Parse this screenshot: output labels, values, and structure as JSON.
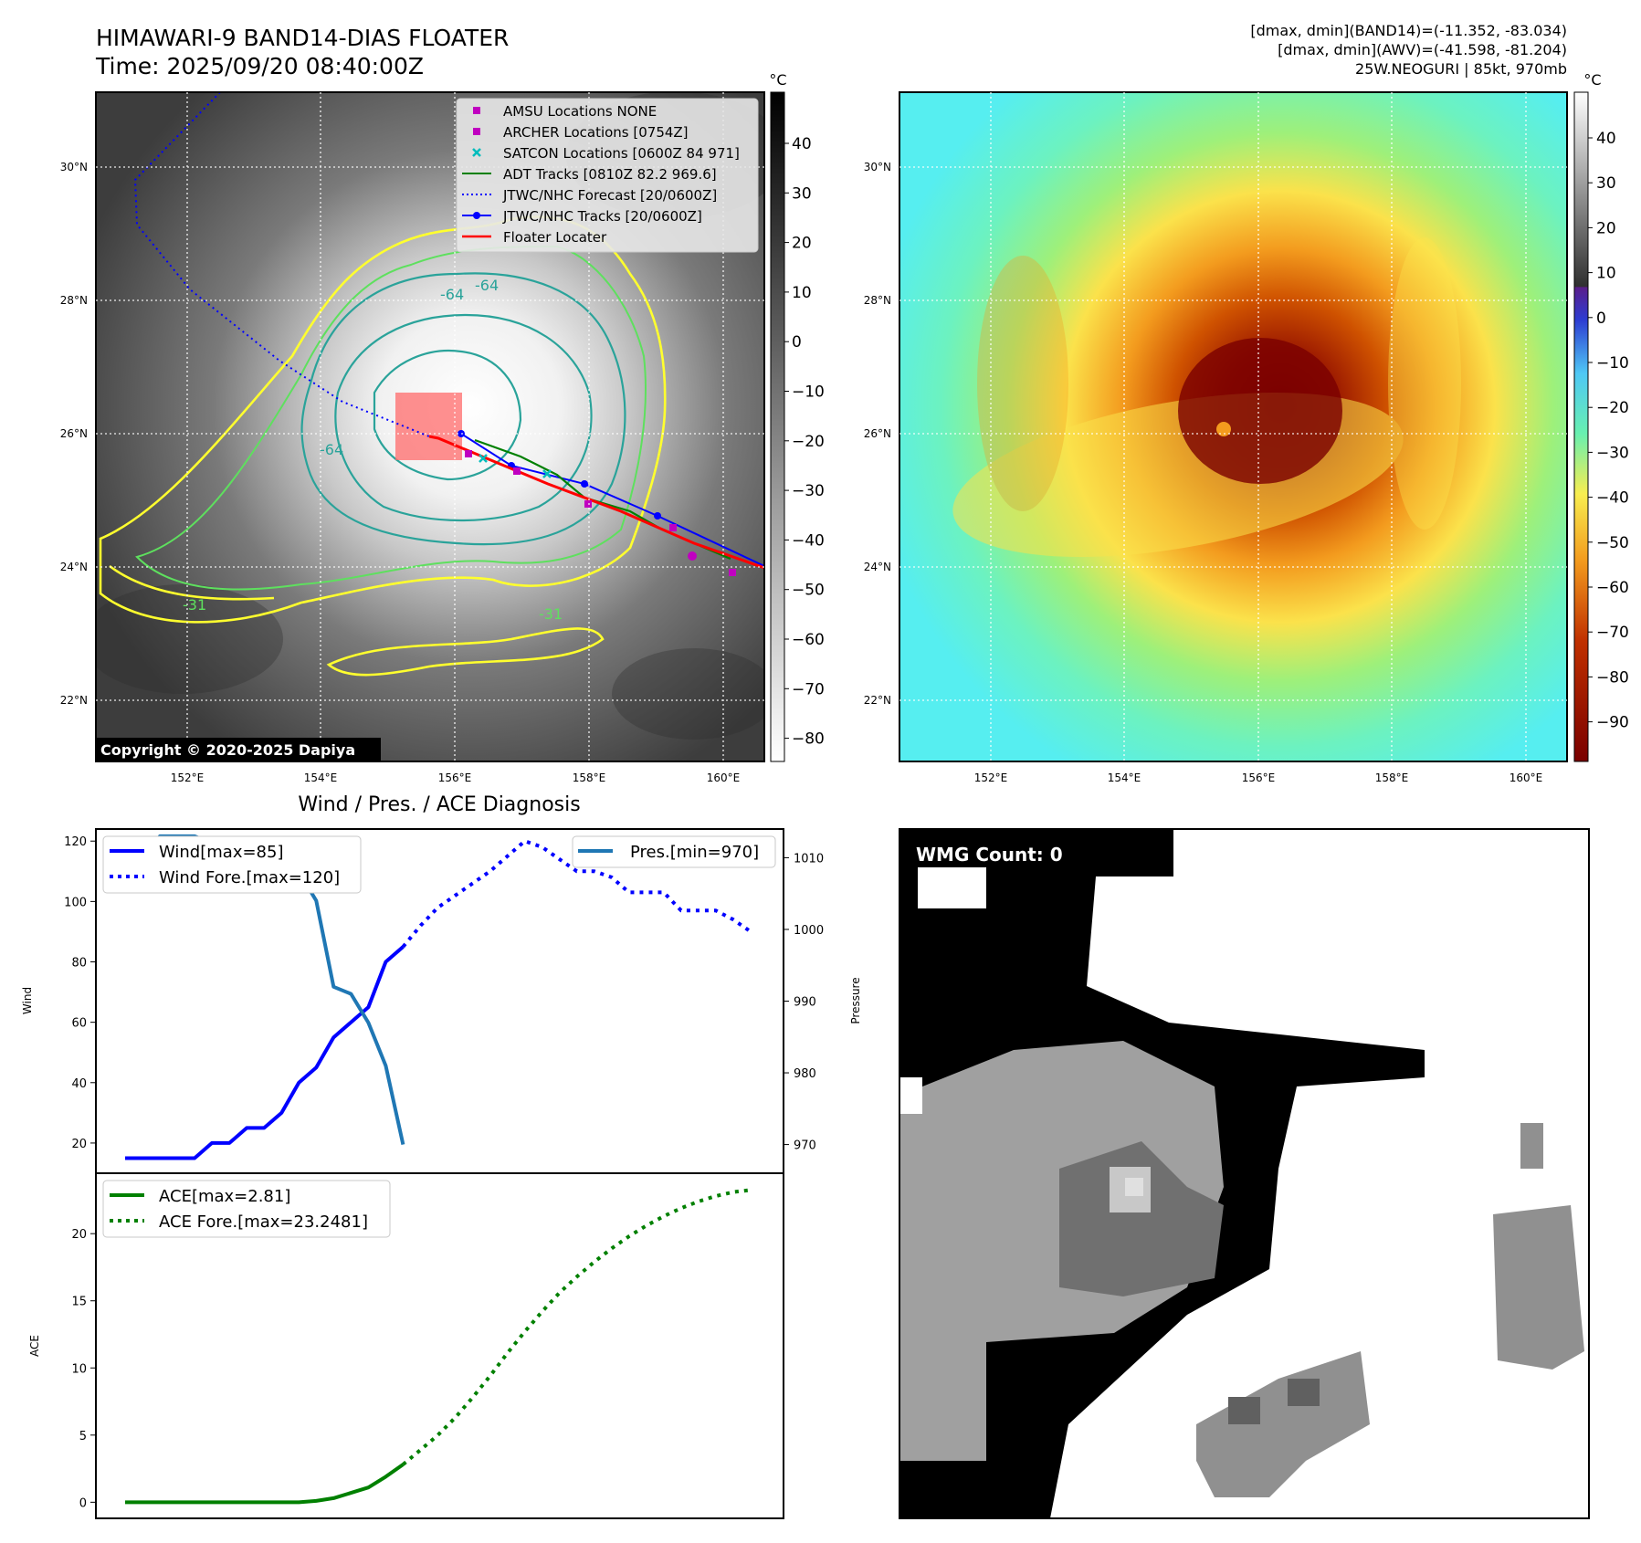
{
  "header": {
    "title_line1": "HIMAWARI-9 BAND14-DIAS FLOATER",
    "title_line2": "Time: 2025/09/20 08:40:00Z",
    "info_line1": "[dmax, dmin](BAND14)=(-11.352, -83.034)",
    "info_line2": "[dmax, dmin](AWV)=(-41.598, -81.204)",
    "info_line3": "25W.NEOGURI | 85kt, 970mb"
  },
  "maps": {
    "lon_ticks": [
      "152°E",
      "154°E",
      "156°E",
      "158°E",
      "160°E"
    ],
    "lat_ticks": [
      "30°N",
      "28°N",
      "26°N",
      "24°N",
      "22°N"
    ],
    "copyright": "Copyright © 2020-2025 Dapiya",
    "legend": [
      {
        "label": "AMSU Locations NONE",
        "kind": "square",
        "color": "#c000c0"
      },
      {
        "label": "ARCHER Locations [0754Z]",
        "kind": "square",
        "color": "#c000c0"
      },
      {
        "label": "SATCON Locations [0600Z 84 971]",
        "kind": "cross",
        "color": "#00bcbc"
      },
      {
        "label": "ADT Tracks [0810Z 82.2 969.6]",
        "kind": "line",
        "color": "#008000"
      },
      {
        "label": "JTWC/NHC Forecast [20/0600Z]",
        "kind": "dotted",
        "color": "#0000ff"
      },
      {
        "label": "JTWC/NHC Tracks [20/0600Z]",
        "kind": "linedot",
        "color": "#0000ff"
      },
      {
        "label": "Floater Locater",
        "kind": "line",
        "color": "#ff0000"
      }
    ],
    "contour_labels": [
      "-64",
      "-64",
      "-64",
      "-31",
      "-31"
    ],
    "colorbar_unit": "°C",
    "colorbar_gray_ticks": [
      "40",
      "30",
      "20",
      "10",
      "0",
      "−10",
      "−20",
      "−30",
      "−40",
      "−50",
      "−60",
      "−70",
      "−80"
    ],
    "colorbar_color_ticks": [
      "40",
      "30",
      "20",
      "10",
      "0",
      "−10",
      "−20",
      "−30",
      "−40",
      "−50",
      "−60",
      "−70",
      "−80",
      "−90"
    ]
  },
  "diag": {
    "title": "Wind / Pres. / ACE Diagnosis",
    "wind_ylabel": "Wind",
    "pres_ylabel": "Pressure",
    "ace_ylabel": "ACE",
    "wind_ticks": [
      "20",
      "40",
      "60",
      "80",
      "100",
      "120"
    ],
    "pres_ticks": [
      "970",
      "980",
      "990",
      "1000",
      "1010"
    ],
    "ace_ticks": [
      "0",
      "5",
      "10",
      "15",
      "20"
    ],
    "legend_wind": "Wind[max=85]",
    "legend_wind_fore": "Wind Fore.[max=120]",
    "legend_pres": "Pres.[min=970]",
    "legend_ace": "ACE[max=2.81]",
    "legend_ace_fore": "ACE Fore.[max=23.2481]"
  },
  "wmg": {
    "label": "WMG Count: 0"
  },
  "chart_data": [
    {
      "type": "line",
      "title": "Wind / Pres. / ACE Diagnosis",
      "ylabel": "Wind",
      "ylim": [
        10,
        124
      ],
      "series": [
        {
          "name": "Wind[max=85]",
          "color": "#0000ff",
          "style": "solid",
          "x": [
            0,
            1,
            2,
            3,
            4,
            5,
            6,
            7,
            8,
            9,
            10,
            11,
            12,
            13,
            14,
            15,
            16
          ],
          "values": [
            15,
            15,
            15,
            15,
            15,
            20,
            20,
            25,
            25,
            30,
            40,
            45,
            55,
            60,
            65,
            80,
            85
          ]
        },
        {
          "name": "Wind Fore.[max=120]",
          "color": "#0000ff",
          "style": "dotted",
          "x": [
            16,
            17,
            18,
            19,
            20,
            21,
            22,
            23,
            24,
            25,
            26,
            27,
            28,
            29,
            30,
            31,
            32,
            33,
            34,
            35,
            36
          ],
          "values": [
            85,
            92,
            98,
            102,
            106,
            110,
            115,
            120,
            118,
            114,
            110,
            110,
            108,
            103,
            103,
            103,
            97,
            97,
            97,
            94,
            90
          ]
        }
      ]
    },
    {
      "type": "line",
      "ylabel": "Pressure",
      "ylim": [
        966,
        1014
      ],
      "series": [
        {
          "name": "Pres.[min=970]",
          "color": "#1f77b4",
          "style": "solid",
          "x": [
            0,
            1,
            2,
            3,
            4,
            5,
            6,
            7,
            8,
            9,
            10,
            11,
            12,
            13,
            14,
            15,
            16
          ],
          "values": [
            1010,
            1010,
            1013,
            1013,
            1013,
            1012,
            1011,
            1011,
            1011,
            1010,
            1008,
            1004,
            992,
            991,
            987,
            981,
            970
          ]
        }
      ]
    },
    {
      "type": "line",
      "ylabel": "ACE",
      "ylim": [
        -1.2,
        24.5
      ],
      "series": [
        {
          "name": "ACE[max=2.81]",
          "color": "#008000",
          "style": "solid",
          "x": [
            0,
            1,
            2,
            3,
            4,
            5,
            6,
            7,
            8,
            9,
            10,
            11,
            12,
            13,
            14,
            15,
            16
          ],
          "values": [
            0,
            0,
            0,
            0,
            0,
            0,
            0,
            0,
            0,
            0,
            0,
            0.1,
            0.3,
            0.7,
            1.1,
            1.9,
            2.81
          ]
        },
        {
          "name": "ACE Fore.[max=23.2481]",
          "color": "#008000",
          "style": "dotted",
          "x": [
            16,
            17,
            18,
            19,
            20,
            21,
            22,
            23,
            24,
            25,
            26,
            27,
            28,
            29,
            30,
            31,
            32,
            33,
            34,
            35,
            36
          ],
          "values": [
            2.81,
            3.9,
            5.0,
            6.3,
            7.8,
            9.4,
            11.1,
            12.7,
            14.2,
            15.6,
            16.8,
            17.9,
            18.9,
            19.8,
            20.6,
            21.3,
            21.9,
            22.4,
            22.8,
            23.1,
            23.2481
          ]
        }
      ]
    }
  ]
}
